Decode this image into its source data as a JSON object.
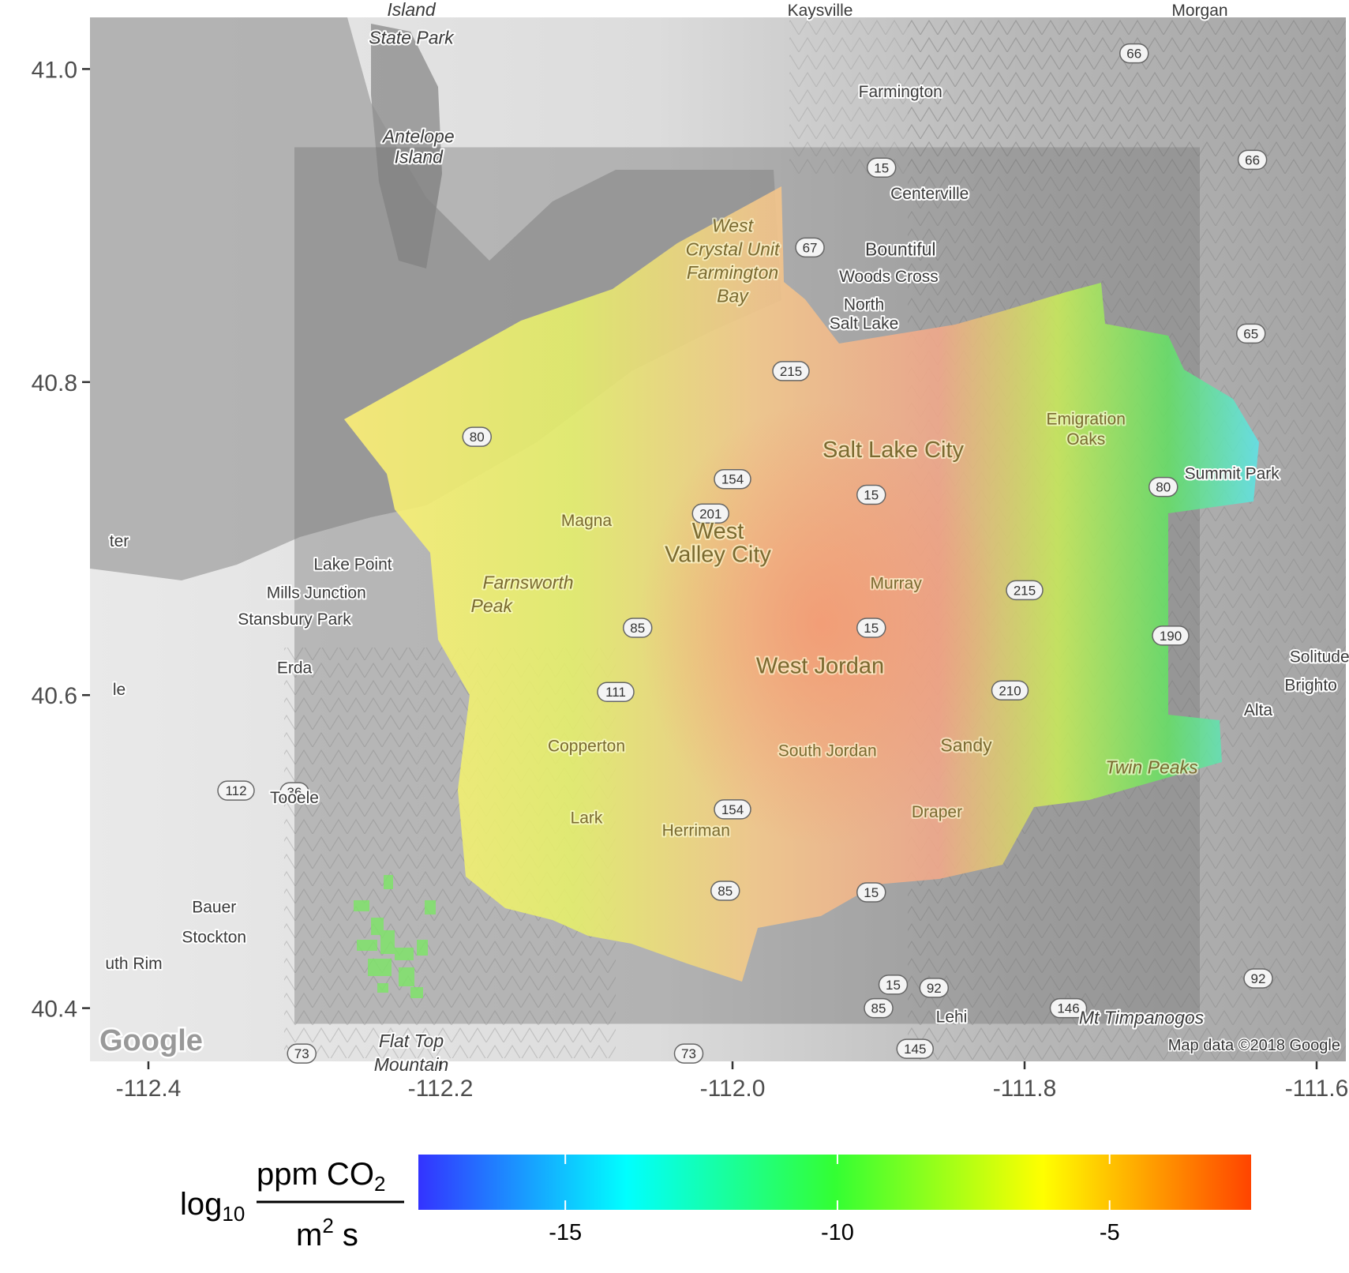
{
  "map": {
    "attribution": "Map data ©2018 Google",
    "provider_logo": "Google",
    "axes": {
      "x": {
        "ticks": [
          -112.4,
          -112.2,
          -112.0,
          -111.8,
          -111.6
        ],
        "tick_labels": [
          "-112.4",
          "-112.2",
          "-112.0",
          "-111.8",
          "-111.6"
        ],
        "range": [
          -112.44,
          -111.58
        ]
      },
      "y": {
        "ticks": [
          41.0,
          40.8,
          40.6,
          40.4
        ],
        "tick_labels": [
          "41.0",
          "40.8",
          "40.6",
          "40.4"
        ],
        "range": [
          40.366,
          41.033
        ]
      }
    },
    "domain_box": {
      "lon": [
        -112.3,
        -111.68
      ],
      "lat": [
        40.39,
        40.95
      ]
    },
    "places": [
      {
        "name": "Island",
        "lon": -112.22,
        "lat": 41.034,
        "style": "italic"
      },
      {
        "name": "State Park",
        "lon": -112.22,
        "lat": 41.016,
        "style": "italic"
      },
      {
        "name": "Kaysville",
        "lon": -111.94,
        "lat": 41.034,
        "style": "small"
      },
      {
        "name": "Morgan",
        "lon": -111.68,
        "lat": 41.034,
        "style": "small"
      },
      {
        "name": "Farmington",
        "lon": -111.885,
        "lat": 40.982,
        "style": "small"
      },
      {
        "name": "Antelope",
        "lon": -112.215,
        "lat": 40.953,
        "style": "italic"
      },
      {
        "name": "Island",
        "lon": -112.215,
        "lat": 40.94,
        "style": "italic"
      },
      {
        "name": "Centerville",
        "lon": -111.865,
        "lat": 40.917,
        "style": "small"
      },
      {
        "name": "Bountiful",
        "lon": -111.885,
        "lat": 40.881,
        "style": "med"
      },
      {
        "name": "Woods Cross",
        "lon": -111.893,
        "lat": 40.864,
        "style": "small"
      },
      {
        "name": "North",
        "lon": -111.91,
        "lat": 40.846,
        "style": "small"
      },
      {
        "name": "Salt Lake",
        "lon": -111.91,
        "lat": 40.834,
        "style": "small"
      },
      {
        "name": "West",
        "lon": -112.0,
        "lat": 40.896,
        "style": "italic onflux"
      },
      {
        "name": "Crystal Unit",
        "lon": -112.0,
        "lat": 40.881,
        "style": "italic onflux"
      },
      {
        "name": "Farmington",
        "lon": -112.0,
        "lat": 40.866,
        "style": "italic onflux"
      },
      {
        "name": "Bay",
        "lon": -112.0,
        "lat": 40.851,
        "style": "italic onflux"
      },
      {
        "name": "Salt Lake City",
        "lon": -111.89,
        "lat": 40.752,
        "style": "big onflux"
      },
      {
        "name": "Emigration",
        "lon": -111.758,
        "lat": 40.773,
        "style": "small onflux"
      },
      {
        "name": "Oaks",
        "lon": -111.758,
        "lat": 40.76,
        "style": "small onflux"
      },
      {
        "name": "Summit Park",
        "lon": -111.658,
        "lat": 40.738,
        "style": "small"
      },
      {
        "name": "Magna",
        "lon": -112.1,
        "lat": 40.708,
        "style": "small onflux"
      },
      {
        "name": "West",
        "lon": -112.01,
        "lat": 40.7,
        "style": "big onflux"
      },
      {
        "name": "Valley City",
        "lon": -112.01,
        "lat": 40.685,
        "style": "big onflux"
      },
      {
        "name": "ter",
        "lon": -112.42,
        "lat": 40.695,
        "style": "small"
      },
      {
        "name": "Lake Point",
        "lon": -112.26,
        "lat": 40.68,
        "style": "small"
      },
      {
        "name": "Farnsworth",
        "lon": -112.14,
        "lat": 40.668,
        "style": "italic onflux"
      },
      {
        "name": "Peak",
        "lon": -112.165,
        "lat": 40.653,
        "style": "italic onflux"
      },
      {
        "name": "Mills Junction",
        "lon": -112.285,
        "lat": 40.662,
        "style": "small"
      },
      {
        "name": "Stansbury Park",
        "lon": -112.3,
        "lat": 40.645,
        "style": "small"
      },
      {
        "name": "Murray",
        "lon": -111.888,
        "lat": 40.668,
        "style": "small onflux"
      },
      {
        "name": "Erda",
        "lon": -112.3,
        "lat": 40.614,
        "style": "small"
      },
      {
        "name": "le",
        "lon": -112.42,
        "lat": 40.6,
        "style": "small"
      },
      {
        "name": "West Jordan",
        "lon": -111.94,
        "lat": 40.614,
        "style": "big onflux"
      },
      {
        "name": "Solitude",
        "lon": -111.598,
        "lat": 40.621,
        "style": "small"
      },
      {
        "name": "Brighto",
        "lon": -111.604,
        "lat": 40.603,
        "style": "small"
      },
      {
        "name": "Alta",
        "lon": -111.64,
        "lat": 40.587,
        "style": "small"
      },
      {
        "name": "Copperton",
        "lon": -112.1,
        "lat": 40.564,
        "style": "small onflux"
      },
      {
        "name": "South Jordan",
        "lon": -111.935,
        "lat": 40.561,
        "style": "small onflux"
      },
      {
        "name": "Sandy",
        "lon": -111.84,
        "lat": 40.564,
        "style": "med onflux"
      },
      {
        "name": "Twin Peaks",
        "lon": -111.713,
        "lat": 40.55,
        "style": "italic onflux"
      },
      {
        "name": "Tooele",
        "lon": -112.3,
        "lat": 40.531,
        "style": "small"
      },
      {
        "name": "Lark",
        "lon": -112.1,
        "lat": 40.518,
        "style": "small onflux"
      },
      {
        "name": "Herriman",
        "lon": -112.025,
        "lat": 40.51,
        "style": "small onflux"
      },
      {
        "name": "Draper",
        "lon": -111.86,
        "lat": 40.522,
        "style": "small onflux"
      },
      {
        "name": "Bauer",
        "lon": -112.355,
        "lat": 40.461,
        "style": "small"
      },
      {
        "name": "Stockton",
        "lon": -112.355,
        "lat": 40.442,
        "style": "small"
      },
      {
        "name": "uth Rim",
        "lon": -112.41,
        "lat": 40.425,
        "style": "small"
      },
      {
        "name": "Lehi",
        "lon": -111.85,
        "lat": 40.391,
        "style": "small"
      },
      {
        "name": "Mt Timpanogos",
        "lon": -111.72,
        "lat": 40.39,
        "style": "italic"
      },
      {
        "name": "Flat Top",
        "lon": -112.22,
        "lat": 40.375,
        "style": "italic"
      },
      {
        "name": "Mountain",
        "lon": -112.22,
        "lat": 40.36,
        "style": "italic"
      }
    ],
    "shields": [
      {
        "label": "66",
        "lon": -111.725,
        "lat": 41.01
      },
      {
        "label": "15",
        "lon": -111.898,
        "lat": 40.937
      },
      {
        "label": "66",
        "lon": -111.644,
        "lat": 40.942
      },
      {
        "label": "67",
        "lon": -111.947,
        "lat": 40.886
      },
      {
        "label": "65",
        "lon": -111.645,
        "lat": 40.831
      },
      {
        "label": "215",
        "lon": -111.96,
        "lat": 40.807
      },
      {
        "label": "80",
        "lon": -112.175,
        "lat": 40.765
      },
      {
        "label": "154",
        "lon": -112.0,
        "lat": 40.738
      },
      {
        "label": "15",
        "lon": -111.905,
        "lat": 40.728
      },
      {
        "label": "80",
        "lon": -111.705,
        "lat": 40.733
      },
      {
        "label": "201",
        "lon": -112.015,
        "lat": 40.716
      },
      {
        "label": "215",
        "lon": -111.8,
        "lat": 40.667
      },
      {
        "label": "85",
        "lon": -112.065,
        "lat": 40.643
      },
      {
        "label": "15",
        "lon": -111.905,
        "lat": 40.643
      },
      {
        "label": "190",
        "lon": -111.7,
        "lat": 40.638
      },
      {
        "label": "111",
        "lon": -112.08,
        "lat": 40.602
      },
      {
        "label": "210",
        "lon": -111.81,
        "lat": 40.603
      },
      {
        "label": "112",
        "lon": -112.34,
        "lat": 40.539
      },
      {
        "label": "36",
        "lon": -112.3,
        "lat": 40.538
      },
      {
        "label": "154",
        "lon": -112.0,
        "lat": 40.527
      },
      {
        "label": "85",
        "lon": -112.005,
        "lat": 40.475
      },
      {
        "label": "15",
        "lon": -111.905,
        "lat": 40.474
      },
      {
        "label": "15",
        "lon": -111.89,
        "lat": 40.415
      },
      {
        "label": "92",
        "lon": -111.862,
        "lat": 40.413
      },
      {
        "label": "85",
        "lon": -111.9,
        "lat": 40.4
      },
      {
        "label": "146",
        "lon": -111.77,
        "lat": 40.4
      },
      {
        "label": "92",
        "lon": -111.64,
        "lat": 40.419
      },
      {
        "label": "145",
        "lon": -111.875,
        "lat": 40.374
      },
      {
        "label": "73",
        "lon": -112.03,
        "lat": 40.371
      },
      {
        "label": "73",
        "lon": -112.295,
        "lat": 40.371
      }
    ]
  },
  "legend": {
    "title_prefix": "log",
    "title_subscript": "10",
    "numerator": "ppm CO",
    "numerator_subscript": "2",
    "denominator": "m",
    "denominator_superscript": "2",
    "denominator_suffix": " s",
    "colors": [
      "#3333ff",
      "#00ffff",
      "#33ff33",
      "#ffff00",
      "#ff4400"
    ],
    "range": [
      -17.7,
      -2.4
    ],
    "ticks": [
      -15,
      -10,
      -5
    ],
    "tick_labels": [
      "-15",
      "-10",
      "-5"
    ]
  }
}
